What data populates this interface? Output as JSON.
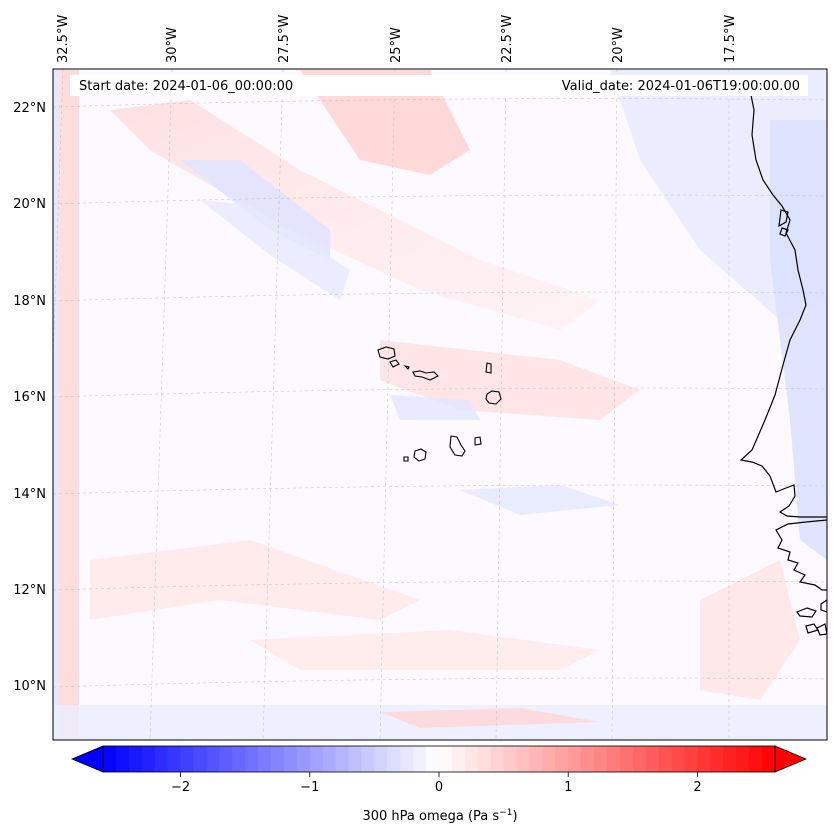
{
  "map": {
    "start_date_label": "Start date: 2024-01-06_00:00:00",
    "valid_date_label": "Valid_date: 2024-01-06T19:00:00.00",
    "lon_labels": [
      "32.5°W",
      "30°W",
      "27.5°W",
      "25°W",
      "22.5°W",
      "20°W",
      "17.5°W"
    ],
    "lat_labels": [
      "22°N",
      "20°N",
      "18°N",
      "16°N",
      "14°N",
      "12°N",
      "10°N"
    ],
    "field": "300 hPa omega",
    "units": "Pa s",
    "units_exponent": "−1",
    "coastline_color": "#000000"
  },
  "colorbar": {
    "ticks": [
      "−2",
      "−1",
      "0",
      "1",
      "2"
    ],
    "tick_values": [
      -2,
      -1,
      0,
      1,
      2
    ],
    "range": [
      -2.6,
      2.6
    ],
    "min_color": "#0000ff",
    "mid_color": "#ffffff",
    "max_color": "#ff0000",
    "extend": "both"
  }
}
